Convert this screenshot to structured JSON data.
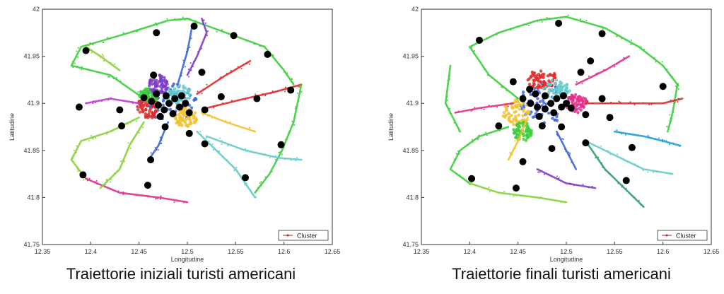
{
  "chart_data": [
    {
      "type": "scatter",
      "caption": "Traiettorie iniziali turisti americani",
      "xlabel": "Longitudine",
      "ylabel": "Latitudine",
      "xlim": [
        12.35,
        12.65
      ],
      "ylim": [
        41.75,
        42.0
      ],
      "xticks": [
        "12.35",
        "12.4",
        "12.45",
        "12.5",
        "12.55",
        "12.6",
        "12.65"
      ],
      "yticks": [
        "41.75",
        "41.8",
        "41.85",
        "41.9",
        "41.95",
        "42"
      ],
      "legend": {
        "label": "Cluster",
        "position": "bottom-right"
      },
      "grid": false,
      "centroids": [
        [
          12.468,
          41.975
        ],
        [
          12.507,
          41.982
        ],
        [
          12.548,
          41.972
        ],
        [
          12.395,
          41.956
        ],
        [
          12.583,
          41.952
        ],
        [
          12.515,
          41.933
        ],
        [
          12.465,
          41.93
        ],
        [
          12.607,
          41.914
        ],
        [
          12.535,
          41.907
        ],
        [
          12.572,
          41.905
        ],
        [
          12.388,
          41.896
        ],
        [
          12.43,
          41.893
        ],
        [
          12.518,
          41.893
        ],
        [
          12.502,
          41.89
        ],
        [
          12.432,
          41.876
        ],
        [
          12.477,
          41.875
        ],
        [
          12.502,
          41.868
        ],
        [
          12.518,
          41.857
        ],
        [
          12.597,
          41.856
        ],
        [
          12.462,
          41.84
        ],
        [
          12.392,
          41.824
        ],
        [
          12.56,
          41.821
        ],
        [
          12.459,
          41.813
        ],
        [
          12.455,
          41.906
        ],
        [
          12.463,
          41.902
        ],
        [
          12.47,
          41.898
        ],
        [
          12.476,
          41.893
        ],
        [
          12.481,
          41.9
        ],
        [
          12.487,
          41.905
        ],
        [
          12.492,
          41.896
        ],
        [
          12.498,
          41.9
        ],
        [
          12.485,
          41.889
        ],
        [
          12.478,
          41.908
        ],
        [
          12.468,
          41.91
        ],
        [
          12.494,
          41.908
        ],
        [
          12.472,
          41.886
        ]
      ],
      "routes": [
        {
          "color": "#3ccf3c",
          "points": [
            [
              12.455,
              41.905
            ],
            [
              12.42,
              41.93
            ],
            [
              12.38,
              41.94
            ],
            [
              12.39,
              41.96
            ],
            [
              12.44,
              41.975
            ],
            [
              12.48,
              41.988
            ],
            [
              12.5,
              41.99
            ]
          ]
        },
        {
          "color": "#3ccf3c",
          "points": [
            [
              12.5,
              41.99
            ],
            [
              12.54,
              41.975
            ],
            [
              12.58,
              41.96
            ],
            [
              12.6,
              41.935
            ],
            [
              12.61,
              41.92
            ]
          ]
        },
        {
          "color": "#8bd13a",
          "points": [
            [
              12.45,
              41.885
            ],
            [
              12.42,
              41.87
            ],
            [
              12.39,
              41.86
            ],
            [
              12.38,
              41.84
            ],
            [
              12.395,
              41.82
            ]
          ]
        },
        {
          "color": "#e0308a",
          "points": [
            [
              12.395,
              41.82
            ],
            [
              12.43,
              41.805
            ],
            [
              12.47,
              41.8
            ],
            [
              12.5,
              41.795
            ]
          ]
        },
        {
          "color": "#e02a2a",
          "points": [
            [
              12.52,
              41.895
            ],
            [
              12.56,
              41.905
            ],
            [
              12.59,
              41.912
            ],
            [
              12.618,
              41.92
            ]
          ]
        },
        {
          "color": "#3ccf3c",
          "points": [
            [
              12.618,
              41.92
            ],
            [
              12.61,
              41.88
            ],
            [
              12.598,
              41.85
            ],
            [
              12.585,
              41.825
            ],
            [
              12.57,
              41.805
            ]
          ]
        },
        {
          "color": "#66cccc",
          "points": [
            [
              12.51,
              41.87
            ],
            [
              12.53,
              41.85
            ],
            [
              12.55,
              41.83
            ],
            [
              12.56,
              41.815
            ],
            [
              12.57,
              41.8
            ]
          ]
        },
        {
          "color": "#66cccc",
          "points": [
            [
              12.52,
              41.865
            ],
            [
              12.56,
              41.85
            ],
            [
              12.595,
              41.842
            ],
            [
              12.618,
              41.84
            ]
          ]
        },
        {
          "color": "#8bd13a",
          "points": [
            [
              12.455,
              41.88
            ],
            [
              12.44,
              41.855
            ],
            [
              12.43,
              41.83
            ],
            [
              12.41,
              41.81
            ]
          ]
        },
        {
          "color": "#7d3cc8",
          "points": [
            [
              12.5,
              41.93
            ],
            [
              12.51,
              41.95
            ],
            [
              12.52,
              41.975
            ],
            [
              12.515,
              41.99
            ]
          ]
        },
        {
          "color": "#e02a2a",
          "points": [
            [
              12.51,
              41.91
            ],
            [
              12.54,
              41.93
            ],
            [
              12.565,
              41.945
            ]
          ]
        },
        {
          "color": "#3a64d8",
          "points": [
            [
              12.49,
              41.92
            ],
            [
              12.5,
              41.955
            ],
            [
              12.505,
              41.982
            ]
          ]
        },
        {
          "color": "#3a64d8",
          "points": [
            [
              12.48,
              41.88
            ],
            [
              12.47,
              41.855
            ],
            [
              12.46,
              41.84
            ]
          ]
        },
        {
          "color": "#f2c230",
          "points": [
            [
              12.515,
              41.89
            ],
            [
              12.54,
              41.88
            ],
            [
              12.57,
              41.87
            ]
          ]
        },
        {
          "color": "#c03ad0",
          "points": [
            [
              12.45,
              41.9
            ],
            [
              12.42,
              41.905
            ],
            [
              12.395,
              41.9
            ]
          ]
        },
        {
          "color": "#8bd13a",
          "points": [
            [
              12.395,
              41.96
            ],
            [
              12.41,
              41.95
            ],
            [
              12.43,
              41.935
            ]
          ]
        }
      ],
      "blobs": [
        {
          "color": "#3a64d8",
          "cx": 12.48,
          "cy": 41.9,
          "rx": 0.03,
          "ry": 0.022
        },
        {
          "color": "#e02a2a",
          "cx": 12.46,
          "cy": 41.896,
          "rx": 0.012,
          "ry": 0.012
        },
        {
          "color": "#3ccf3c",
          "cx": 12.46,
          "cy": 41.908,
          "rx": 0.01,
          "ry": 0.008
        },
        {
          "color": "#f2c230",
          "cx": 12.498,
          "cy": 41.885,
          "rx": 0.012,
          "ry": 0.01
        },
        {
          "color": "#66cccc",
          "cx": 12.49,
          "cy": 41.91,
          "rx": 0.014,
          "ry": 0.01
        },
        {
          "color": "#7d3cc8",
          "cx": 12.47,
          "cy": 41.92,
          "rx": 0.01,
          "ry": 0.01
        }
      ]
    },
    {
      "type": "scatter",
      "caption": "Traiettorie finali turisti americani",
      "xlabel": "Longitudine",
      "ylabel": "Latitudine",
      "xlim": [
        12.35,
        12.65
      ],
      "ylim": [
        41.75,
        42.0
      ],
      "xticks": [
        "12.35",
        "12.4",
        "12.45",
        "12.5",
        "12.55",
        "12.6",
        "12.65"
      ],
      "yticks": [
        "41.75",
        "41.8",
        "41.85",
        "41.9",
        "41.95",
        "42"
      ],
      "legend": {
        "label": "Cluster",
        "position": "bottom-right"
      },
      "grid": false,
      "centroids": [
        [
          12.492,
          41.985
        ],
        [
          12.537,
          41.974
        ],
        [
          12.41,
          41.967
        ],
        [
          12.525,
          41.945
        ],
        [
          12.445,
          41.923
        ],
        [
          12.515,
          41.933
        ],
        [
          12.6,
          41.918
        ],
        [
          12.462,
          41.915
        ],
        [
          12.537,
          41.905
        ],
        [
          12.43,
          41.876
        ],
        [
          12.52,
          41.888
        ],
        [
          12.545,
          41.885
        ],
        [
          12.475,
          41.876
        ],
        [
          12.495,
          41.875
        ],
        [
          12.52,
          41.858
        ],
        [
          12.568,
          41.853
        ],
        [
          12.485,
          41.852
        ],
        [
          12.455,
          41.838
        ],
        [
          12.402,
          41.82
        ],
        [
          12.562,
          41.818
        ],
        [
          12.448,
          41.81
        ],
        [
          12.455,
          41.905
        ],
        [
          12.463,
          41.9
        ],
        [
          12.47,
          41.896
        ],
        [
          12.478,
          41.894
        ],
        [
          12.484,
          41.9
        ],
        [
          12.49,
          41.905
        ],
        [
          12.495,
          41.896
        ],
        [
          12.5,
          41.9
        ],
        [
          12.487,
          41.89
        ],
        [
          12.478,
          41.908
        ],
        [
          12.468,
          41.91
        ],
        [
          12.497,
          41.908
        ],
        [
          12.472,
          41.886
        ],
        [
          12.505,
          41.895
        ]
      ],
      "routes": [
        {
          "color": "#3ccf3c",
          "points": [
            [
              12.45,
              41.905
            ],
            [
              12.42,
              41.93
            ],
            [
              12.4,
              41.96
            ],
            [
              12.43,
              41.975
            ],
            [
              12.47,
              41.988
            ],
            [
              12.5,
              41.992
            ]
          ]
        },
        {
          "color": "#3ccf3c",
          "points": [
            [
              12.5,
              41.992
            ],
            [
              12.54,
              41.98
            ],
            [
              12.575,
              41.96
            ],
            [
              12.6,
              41.94
            ],
            [
              12.615,
              41.92
            ]
          ]
        },
        {
          "color": "#e0308a",
          "points": [
            [
              12.445,
              41.9
            ],
            [
              12.41,
              41.895
            ],
            [
              12.385,
              41.89
            ]
          ]
        },
        {
          "color": "#3ccf3c",
          "points": [
            [
              12.44,
              41.875
            ],
            [
              12.41,
              41.865
            ],
            [
              12.39,
              41.85
            ],
            [
              12.38,
              41.83
            ],
            [
              12.4,
              41.815
            ]
          ]
        },
        {
          "color": "#8bd13a",
          "points": [
            [
              12.4,
              41.815
            ],
            [
              12.43,
              41.805
            ],
            [
              12.47,
              41.8
            ],
            [
              12.5,
              41.795
            ]
          ]
        },
        {
          "color": "#7d3cc8",
          "points": [
            [
              12.47,
              41.83
            ],
            [
              12.5,
              41.815
            ],
            [
              12.53,
              41.81
            ]
          ]
        },
        {
          "color": "#66cccc",
          "points": [
            [
              12.52,
              41.86
            ],
            [
              12.55,
              41.845
            ],
            [
              12.58,
              41.83
            ],
            [
              12.61,
              41.825
            ]
          ]
        },
        {
          "color": "#1fa0d8",
          "points": [
            [
              12.55,
              41.87
            ],
            [
              12.58,
              41.865
            ],
            [
              12.6,
              41.86
            ],
            [
              12.618,
              41.855
            ]
          ]
        },
        {
          "color": "#3ccf3c",
          "points": [
            [
              12.615,
              41.92
            ],
            [
              12.61,
              41.89
            ],
            [
              12.605,
              41.87
            ]
          ]
        },
        {
          "color": "#2e9e6e",
          "points": [
            [
              12.52,
              41.86
            ],
            [
              12.54,
              41.83
            ],
            [
              12.56,
              41.81
            ],
            [
              12.58,
              41.79
            ]
          ]
        },
        {
          "color": "#e0308a",
          "points": [
            [
              12.51,
              41.92
            ],
            [
              12.54,
              41.935
            ],
            [
              12.565,
              41.95
            ]
          ]
        },
        {
          "color": "#f2c230",
          "points": [
            [
              12.46,
              41.885
            ],
            [
              12.45,
              41.86
            ],
            [
              12.44,
              41.84
            ]
          ]
        },
        {
          "color": "#3a64d8",
          "points": [
            [
              12.49,
              41.87
            ],
            [
              12.5,
              41.85
            ],
            [
              12.51,
              41.83
            ]
          ]
        },
        {
          "color": "#e02a2a",
          "points": [
            [
              12.52,
              41.9
            ],
            [
              12.56,
              41.9
            ],
            [
              12.6,
              41.9
            ],
            [
              12.62,
              41.905
            ]
          ]
        },
        {
          "color": "#3ccf3c",
          "points": [
            [
              12.39,
              41.87
            ],
            [
              12.375,
              41.9
            ],
            [
              12.38,
              41.94
            ]
          ]
        }
      ],
      "blobs": [
        {
          "color": "#3a64d8",
          "cx": 12.48,
          "cy": 41.9,
          "rx": 0.03,
          "ry": 0.022
        },
        {
          "color": "#e02a2a",
          "cx": 12.475,
          "cy": 41.925,
          "rx": 0.018,
          "ry": 0.01
        },
        {
          "color": "#f2c230",
          "cx": 12.448,
          "cy": 41.89,
          "rx": 0.014,
          "ry": 0.014
        },
        {
          "color": "#66cccc",
          "cx": 12.49,
          "cy": 41.915,
          "rx": 0.014,
          "ry": 0.01
        },
        {
          "color": "#e0308a",
          "cx": 12.51,
          "cy": 41.9,
          "rx": 0.012,
          "ry": 0.01
        },
        {
          "color": "#3ccf3c",
          "cx": 12.455,
          "cy": 41.87,
          "rx": 0.01,
          "ry": 0.01
        }
      ]
    }
  ]
}
